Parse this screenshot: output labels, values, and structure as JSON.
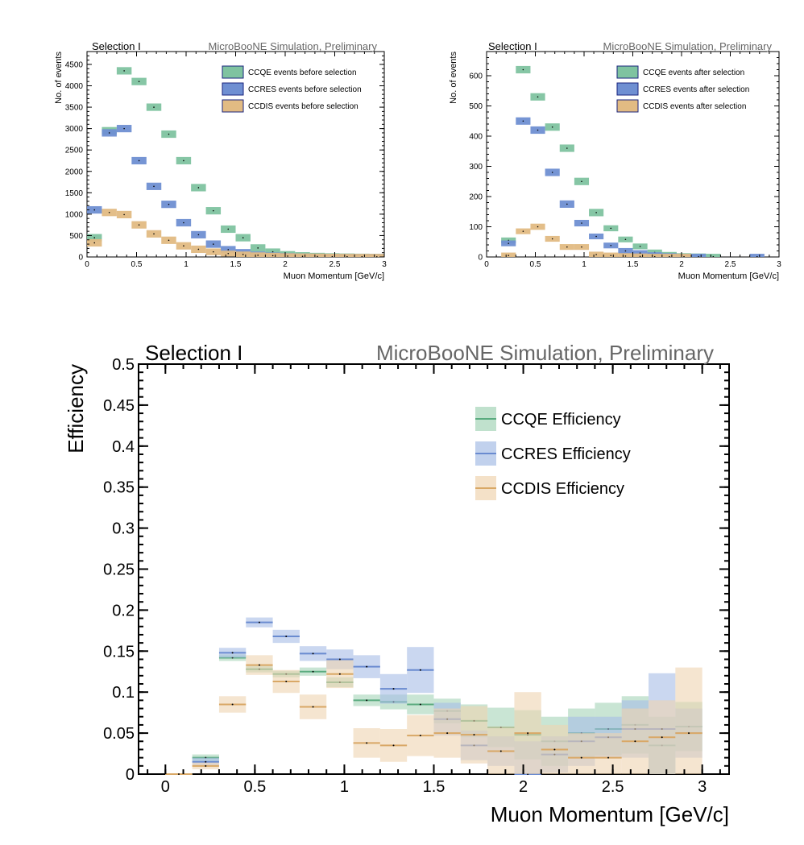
{
  "chart_data": [
    {
      "type": "bar",
      "panel_label": "Selection I",
      "watermark": "MicroBooNE Simulation, Preliminary",
      "xlabel": "Muon Momentum [GeV/c]",
      "ylabel": "No. of events",
      "xlim": [
        0,
        3
      ],
      "ylim": [
        0,
        4800
      ],
      "xticks": [
        0,
        0.5,
        1,
        1.5,
        2,
        2.5,
        3
      ],
      "yticks": [
        0,
        500,
        1000,
        1500,
        2000,
        2500,
        3000,
        3500,
        4000,
        4500
      ],
      "bin_width": 0.15,
      "x": [
        0.075,
        0.225,
        0.375,
        0.525,
        0.675,
        0.825,
        0.975,
        1.125,
        1.275,
        1.425,
        1.575,
        1.725,
        1.875,
        2.025,
        2.175,
        2.325,
        2.475,
        2.625,
        2.775,
        2.925
      ],
      "legend_position": "top-right",
      "series": [
        {
          "name": "CCQE events before selection",
          "color": "#7fc3a0",
          "values": [
            450,
            2950,
            4350,
            4100,
            3500,
            2870,
            2250,
            1620,
            1080,
            650,
            450,
            210,
            120,
            70,
            45,
            30,
            20,
            15,
            10,
            6
          ]
        },
        {
          "name": "CCRES events before selection",
          "color": "#6f8fd2",
          "values": [
            1100,
            2900,
            3000,
            2250,
            1650,
            1230,
            800,
            520,
            300,
            170,
            110,
            60,
            40,
            25,
            15,
            10,
            8,
            5,
            4,
            3
          ]
        },
        {
          "name": "CCDIS events before selection",
          "color": "#e2bb83",
          "values": [
            330,
            1040,
            990,
            750,
            540,
            390,
            260,
            180,
            120,
            80,
            60,
            40,
            30,
            20,
            15,
            12,
            8,
            6,
            5,
            4
          ]
        }
      ]
    },
    {
      "type": "bar",
      "panel_label": "Selection I",
      "watermark": "MicroBooNE Simulation, Preliminary",
      "xlabel": "Muon Momentum [GeV/c]",
      "ylabel": "No. of events",
      "xlim": [
        0,
        3
      ],
      "ylim": [
        0,
        680
      ],
      "xticks": [
        0,
        0.5,
        1,
        1.5,
        2,
        2.5,
        3
      ],
      "yticks": [
        0,
        100,
        200,
        300,
        400,
        500,
        600
      ],
      "bin_width": 0.15,
      "x": [
        0.075,
        0.225,
        0.375,
        0.525,
        0.675,
        0.825,
        0.975,
        1.125,
        1.275,
        1.425,
        1.575,
        1.725,
        1.875,
        2.025,
        2.175,
        2.325,
        2.475,
        2.625,
        2.775,
        2.925
      ],
      "legend_position": "top-right",
      "series": [
        {
          "name": "CCQE events after selection",
          "color": "#7fc3a0",
          "values": [
            0,
            55,
            620,
            530,
            430,
            360,
            250,
            147,
            95,
            58,
            35,
            15,
            7,
            3,
            2,
            1,
            0,
            0,
            0,
            0
          ]
        },
        {
          "name": "CCRES events after selection",
          "color": "#6f8fd2",
          "values": [
            0,
            45,
            450,
            420,
            280,
            175,
            112,
            68,
            38,
            20,
            13,
            6,
            3,
            1,
            1,
            0,
            0,
            0,
            1,
            0
          ]
        },
        {
          "name": "CCDIS events after selection",
          "color": "#e2bb83",
          "values": [
            0,
            5,
            85,
            100,
            60,
            33,
            33,
            8,
            5,
            3,
            2,
            1,
            1,
            1,
            0,
            0,
            0,
            0,
            0,
            0
          ]
        }
      ]
    },
    {
      "type": "bar",
      "panel_label": "Selection I",
      "watermark": "MicroBooNE Simulation, Preliminary",
      "xlabel": "Muon Momentum [GeV/c]",
      "ylabel": "Efficiency",
      "xlim": [
        -0.15,
        3.15
      ],
      "ylim": [
        0,
        0.5
      ],
      "xticks": [
        0,
        0.5,
        1,
        1.5,
        2,
        2.5,
        3
      ],
      "xtick_labels": [
        "0",
        "0.5",
        "1",
        "1.5",
        "2",
        "2.5",
        "3"
      ],
      "yticks": [
        0,
        0.05,
        0.1,
        0.15,
        0.2,
        0.25,
        0.3,
        0.35,
        0.4,
        0.45,
        0.5
      ],
      "ytick_labels": [
        "0",
        "0.05",
        "0.1",
        "0.15",
        "0.2",
        "0.25",
        "0.3",
        "0.35",
        "0.4",
        "0.45",
        "0.5"
      ],
      "bin_width": 0.15,
      "x": [
        0.075,
        0.225,
        0.375,
        0.525,
        0.675,
        0.825,
        0.975,
        1.125,
        1.275,
        1.425,
        1.575,
        1.725,
        1.875,
        2.025,
        2.175,
        2.325,
        2.475,
        2.625,
        2.775,
        2.925
      ],
      "legend_position": "top-right",
      "series": [
        {
          "name": "CCQE Efficiency",
          "line_color": "#5aab7f",
          "fill_color": "#a5d4b8",
          "values": [
            0.0,
            0.02,
            0.142,
            0.128,
            0.122,
            0.125,
            0.112,
            0.09,
            0.088,
            0.085,
            0.077,
            0.065,
            0.057,
            0.048,
            0.04,
            0.05,
            0.055,
            0.06,
            0.035,
            0.058
          ],
          "errors": [
            0.0,
            0.004,
            0.004,
            0.004,
            0.004,
            0.005,
            0.006,
            0.007,
            0.009,
            0.012,
            0.015,
            0.02,
            0.024,
            0.03,
            0.03,
            0.03,
            0.032,
            0.035,
            0.035,
            0.03
          ]
        },
        {
          "name": "CCRES Efficiency",
          "line_color": "#6a8bd0",
          "fill_color": "#a7bde6",
          "values": [
            0.0,
            0.015,
            0.148,
            0.185,
            0.168,
            0.147,
            0.14,
            0.131,
            0.104,
            0.127,
            0.067,
            0.035,
            0.028,
            0.0,
            0.024,
            0.04,
            0.045,
            0.055,
            0.055,
            0.05
          ],
          "errors": [
            0.0,
            0.005,
            0.006,
            0.006,
            0.008,
            0.009,
            0.012,
            0.014,
            0.018,
            0.028,
            0.02,
            0.018,
            0.018,
            0.04,
            0.022,
            0.03,
            0.025,
            0.035,
            0.068,
            0.03
          ]
        },
        {
          "name": "CCDIS Efficiency",
          "line_color": "#d9a866",
          "fill_color": "#efd4b0",
          "values": [
            0.0,
            0.01,
            0.085,
            0.133,
            0.113,
            0.082,
            0.122,
            0.038,
            0.035,
            0.047,
            0.05,
            0.048,
            0.028,
            0.05,
            0.03,
            0.02,
            0.02,
            0.04,
            0.045,
            0.05
          ],
          "errors": [
            0.0,
            0.004,
            0.01,
            0.012,
            0.014,
            0.015,
            0.017,
            0.018,
            0.02,
            0.025,
            0.03,
            0.035,
            0.03,
            0.05,
            0.03,
            0.03,
            0.03,
            0.04,
            0.045,
            0.08
          ]
        }
      ]
    }
  ]
}
